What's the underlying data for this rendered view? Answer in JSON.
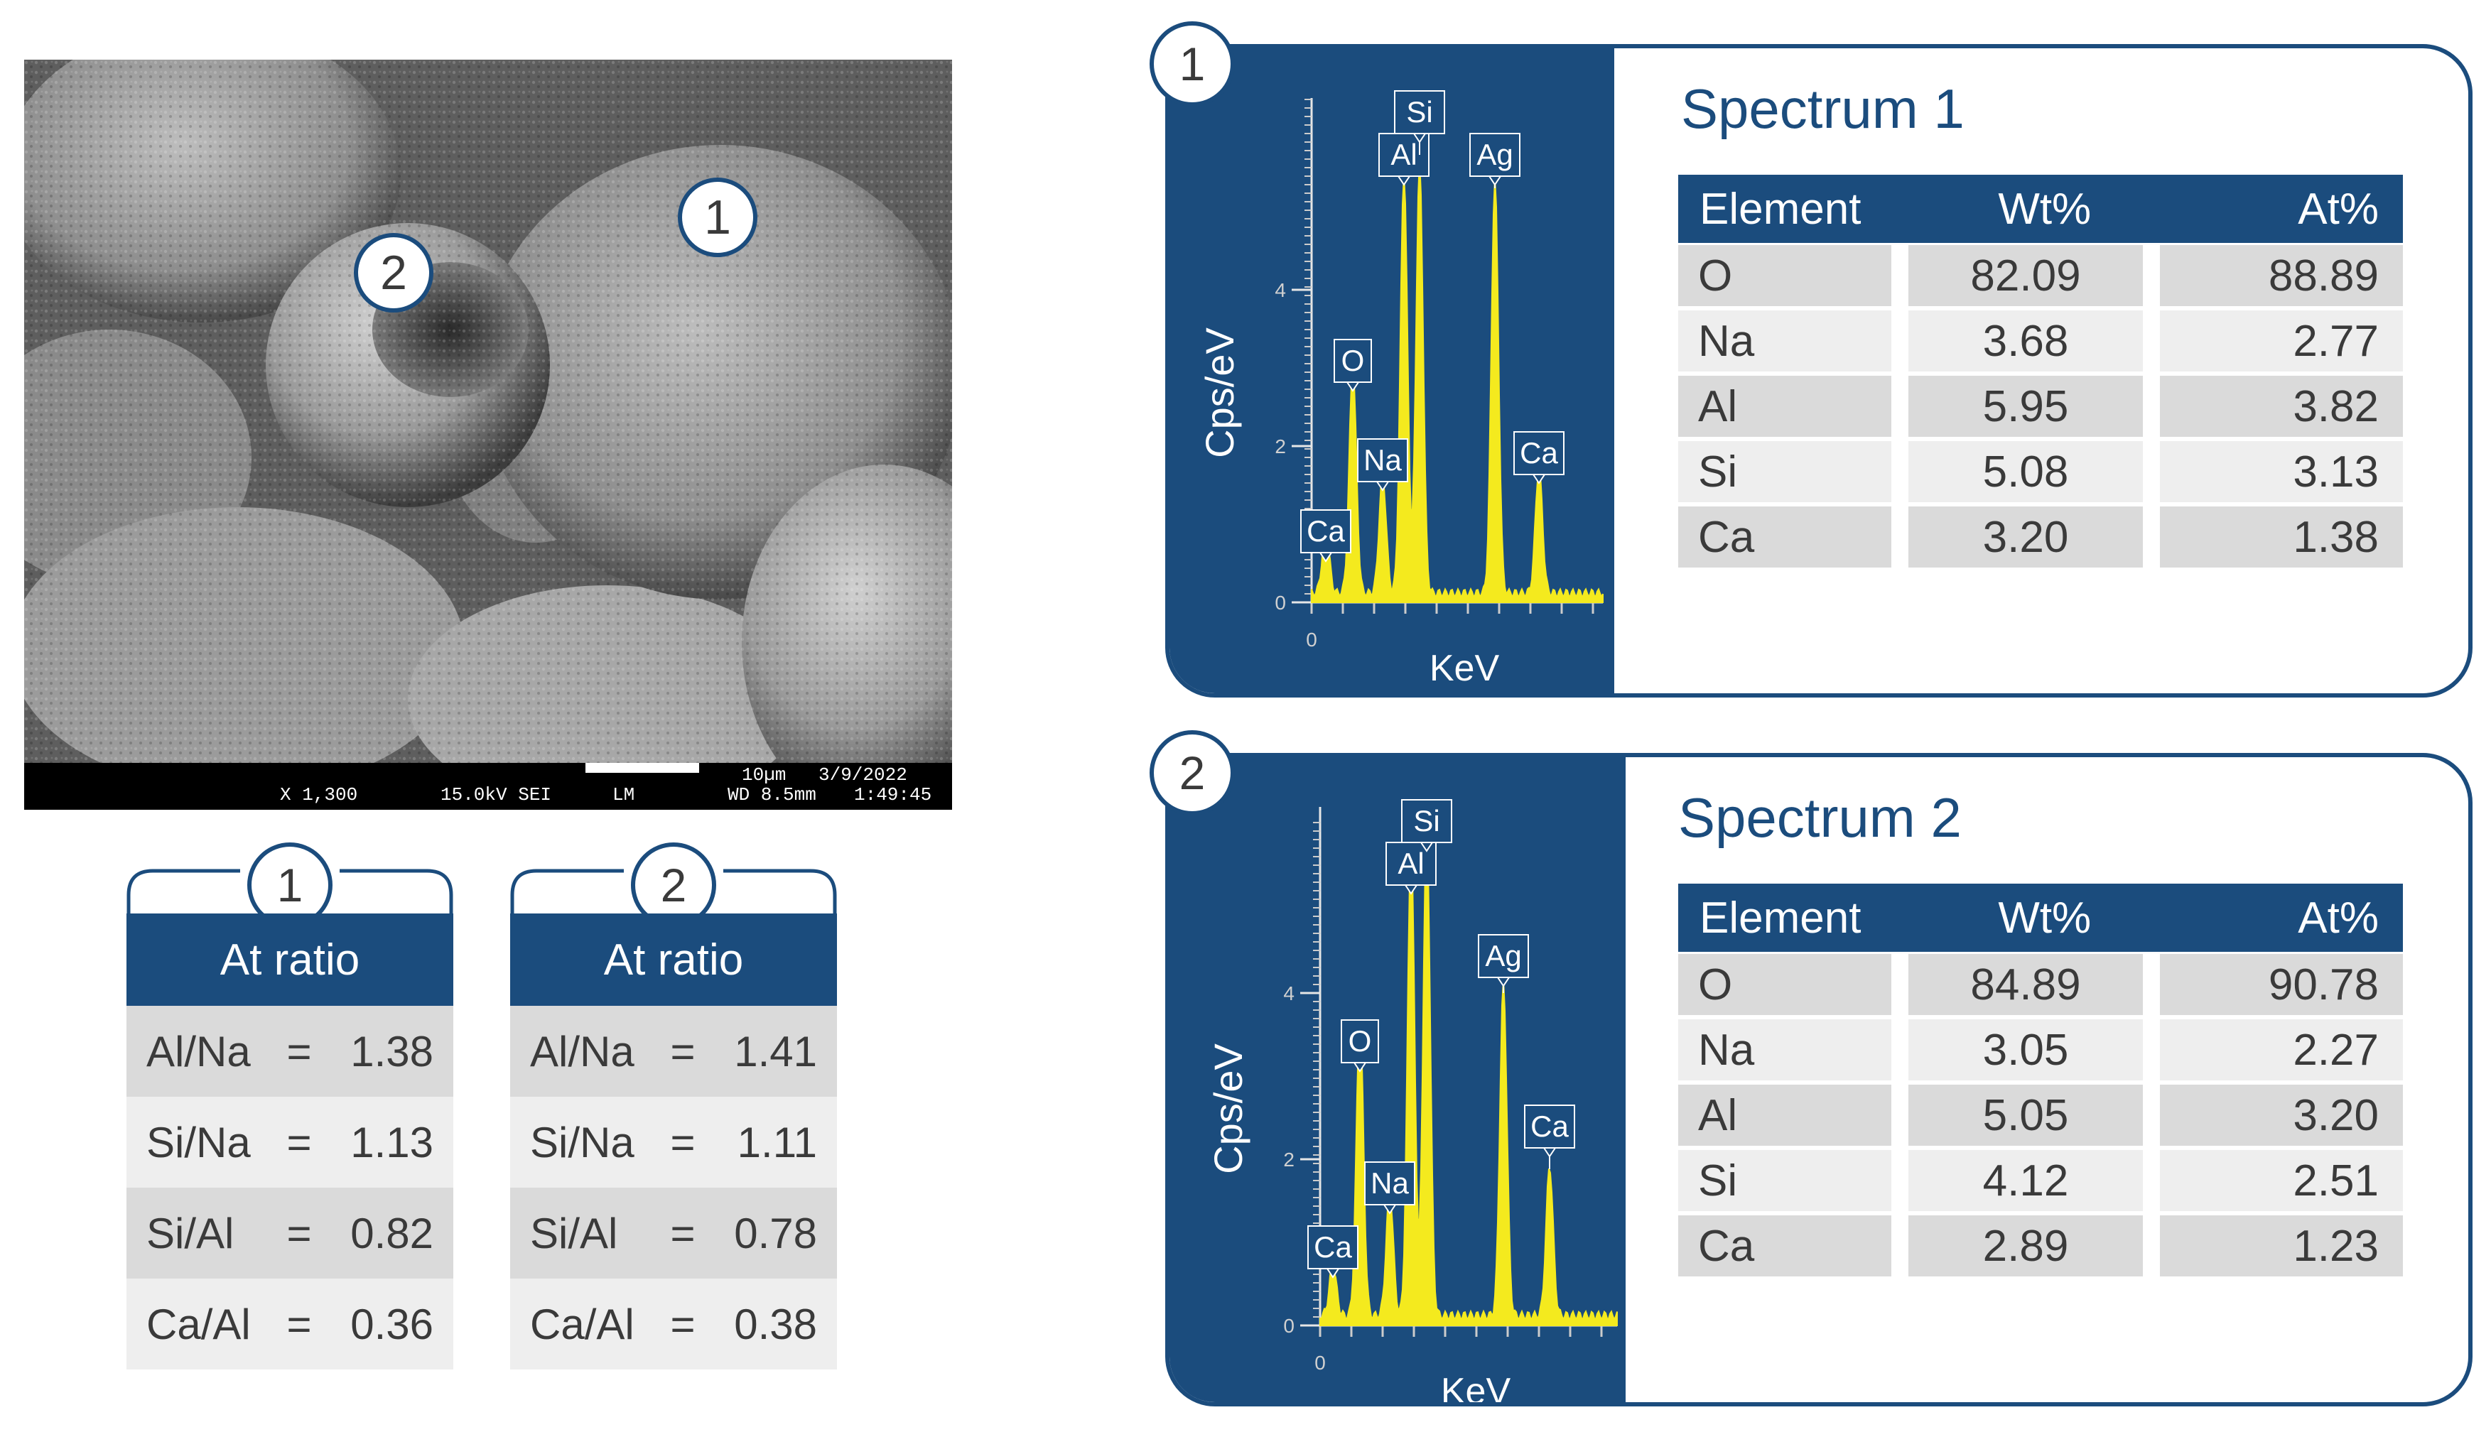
{
  "sem_image": {
    "info_bar": {
      "magnification": "X 1,300",
      "voltage_mode": "15.0kV SEI",
      "detector": "LM",
      "scale": "10µm",
      "working_distance": "WD 8.5mm",
      "date": "3/9/2022",
      "time": "1:49:45"
    },
    "markers": [
      "1",
      "2"
    ]
  },
  "ratio_tables": [
    {
      "number": "1",
      "header": "At ratio",
      "rows": [
        {
          "label": "Al/Na",
          "eq": "=",
          "value": "1.38"
        },
        {
          "label": "Si/Na",
          "eq": "=",
          "value": "1.13"
        },
        {
          "label": "Si/Al",
          "eq": "=",
          "value": "0.82"
        },
        {
          "label": "Ca/Al",
          "eq": "=",
          "value": "0.36"
        }
      ]
    },
    {
      "number": "2",
      "header": "At ratio",
      "rows": [
        {
          "label": "Al/Na",
          "eq": "=",
          "value": "1.41"
        },
        {
          "label": "Si/Na",
          "eq": "=",
          "value": "1.11"
        },
        {
          "label": "Si/Al",
          "eq": "=",
          "value": "0.78"
        },
        {
          "label": "Ca/Al",
          "eq": "=",
          "value": "0.38"
        }
      ]
    }
  ],
  "spectra": [
    {
      "number": "1",
      "title": "Spectrum 1",
      "columns": [
        "Element",
        "Wt%",
        "At%"
      ],
      "rows": [
        [
          "O",
          "82.09",
          "88.89"
        ],
        [
          "Na",
          "3.68",
          "2.77"
        ],
        [
          "Al",
          "5.95",
          "3.82"
        ],
        [
          "Si",
          "5.08",
          "3.13"
        ],
        [
          "Ca",
          "3.20",
          "1.38"
        ]
      ],
      "plot": {
        "ylabel": "Cps/eV",
        "xlabel": "KeV",
        "yticks": [
          "0",
          "2",
          "4"
        ],
        "xtick": "0",
        "peaks": [
          {
            "label": "Ca",
            "height": 0.8
          },
          {
            "label": "O",
            "height": 2.9
          },
          {
            "label": "Na",
            "height": 1.5
          },
          {
            "label": "Al",
            "height": 5.4
          },
          {
            "label": "Si",
            "height": 5.5
          },
          {
            "label": "Ag",
            "height": 5.3
          },
          {
            "label": "Ca",
            "height": 1.6
          }
        ]
      }
    },
    {
      "number": "2",
      "title": "Spectrum 2",
      "columns": [
        "Element",
        "Wt%",
        "At%"
      ],
      "rows": [
        [
          "O",
          "84.89",
          "90.78"
        ],
        [
          "Na",
          "3.05",
          "2.27"
        ],
        [
          "Al",
          "5.05",
          "3.20"
        ],
        [
          "Si",
          "4.12",
          "2.51"
        ],
        [
          "Ca",
          "2.89",
          "1.23"
        ]
      ],
      "plot": {
        "ylabel": "Cps/eV",
        "xlabel": "KeV",
        "yticks": [
          "0",
          "2",
          "4"
        ],
        "xtick": "0",
        "peaks": [
          {
            "label": "Ca",
            "height": 0.6
          },
          {
            "label": "O",
            "height": 3.6
          },
          {
            "label": "Na",
            "height": 1.5
          },
          {
            "label": "Al",
            "height": 5.7
          },
          {
            "label": "Si",
            "height": 5.9
          },
          {
            "label": "Ag",
            "height": 4.0
          },
          {
            "label": "Ca",
            "height": 1.8
          }
        ]
      }
    }
  ],
  "colors": {
    "navy": "#1b4c7d",
    "spectrum_yellow": "#f4ea1e",
    "row_dark": "#dadada",
    "row_light": "#eeeeee",
    "text": "#3a3a3a"
  }
}
